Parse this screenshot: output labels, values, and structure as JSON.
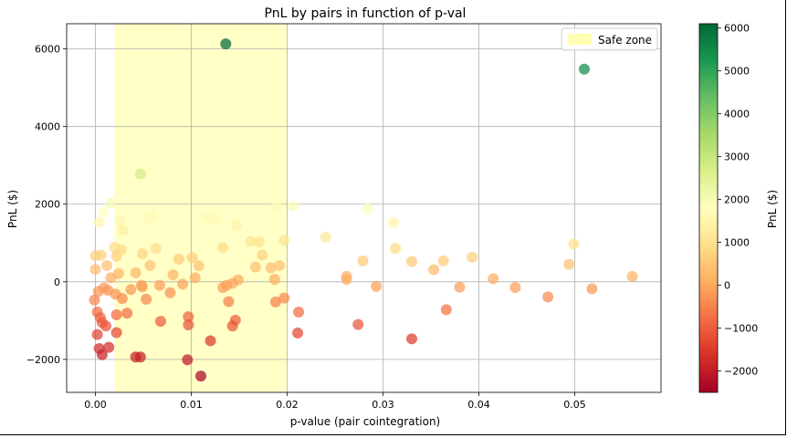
{
  "chart_data": {
    "type": "scatter",
    "title": "PnL by pairs in function of p-val",
    "xlabel": "p-value (pair cointegration)",
    "ylabel": "PnL ($)",
    "xlim": [
      -0.003,
      0.059
    ],
    "ylim": [
      -2850,
      6650
    ],
    "xticks": [
      0.0,
      0.01,
      0.02,
      0.03,
      0.04,
      0.05
    ],
    "xtick_labels": [
      "0.00",
      "0.01",
      "0.02",
      "0.03",
      "0.04",
      "0.05"
    ],
    "yticks": [
      -2000,
      0,
      2000,
      4000,
      6000
    ],
    "ytick_labels": [
      "−2000",
      "0",
      "2000",
      "4000",
      "6000"
    ],
    "grid": true,
    "legend": {
      "position": "upper right",
      "entries": [
        {
          "label": "Safe zone",
          "color": "#ffffb3"
        }
      ]
    },
    "safe_zone": {
      "x": [
        0.002,
        0.02
      ],
      "color": "#ffffb3"
    },
    "colorbar": {
      "label": "PnL ($)",
      "range": [
        -2500,
        6100
      ],
      "ticks": [
        -2000,
        -1000,
        0,
        1000,
        2000,
        3000,
        4000,
        5000,
        6000
      ],
      "tick_labels": [
        "−2000",
        "−1000",
        "0",
        "1000",
        "2000",
        "3000",
        "4000",
        "5000",
        "6000"
      ],
      "colormap": "RdYlGn"
    },
    "points": [
      {
        "x": 0.0136,
        "y": 6130
      },
      {
        "x": 0.051,
        "y": 5480
      },
      {
        "x": 0.0047,
        "y": 2780
      },
      {
        "x": 0.0016,
        "y": 2020
      },
      {
        "x": 0.0008,
        "y": 1800
      },
      {
        "x": 0.0004,
        "y": 1530
      },
      {
        "x": 0.0026,
        "y": 1560
      },
      {
        "x": 0.0029,
        "y": 1330
      },
      {
        "x": 0.0055,
        "y": 1650
      },
      {
        "x": 0.006,
        "y": 1720
      },
      {
        "x": 0.0116,
        "y": 1660
      },
      {
        "x": 0.0126,
        "y": 1620
      },
      {
        "x": 0.0147,
        "y": 1460
      },
      {
        "x": 0.0189,
        "y": 1940
      },
      {
        "x": 0.0206,
        "y": 1950
      },
      {
        "x": 0.0284,
        "y": 1880
      },
      {
        "x": 0.0311,
        "y": 1520
      },
      {
        "x": 0.024,
        "y": 1150
      },
      {
        "x": 0.0,
        "y": 670
      },
      {
        "x": 0.0006,
        "y": 690
      },
      {
        "x": 0.0,
        "y": 320
      },
      {
        "x": 0.0012,
        "y": 420
      },
      {
        "x": 0.002,
        "y": 890
      },
      {
        "x": 0.0022,
        "y": 660
      },
      {
        "x": 0.0027,
        "y": 820
      },
      {
        "x": 0.0024,
        "y": 210
      },
      {
        "x": 0.0016,
        "y": 100
      },
      {
        "x": 0.0042,
        "y": 230
      },
      {
        "x": 0.0049,
        "y": 720
      },
      {
        "x": 0.0057,
        "y": 420
      },
      {
        "x": 0.0063,
        "y": 860
      },
      {
        "x": 0.0081,
        "y": 180
      },
      {
        "x": 0.0087,
        "y": 580
      },
      {
        "x": 0.0101,
        "y": 620
      },
      {
        "x": 0.0104,
        "y": 100
      },
      {
        "x": 0.0108,
        "y": 410
      },
      {
        "x": 0.0133,
        "y": 880
      },
      {
        "x": 0.0149,
        "y": 50
      },
      {
        "x": 0.0162,
        "y": 1040
      },
      {
        "x": 0.0167,
        "y": 380
      },
      {
        "x": 0.0171,
        "y": 1020
      },
      {
        "x": 0.0174,
        "y": 690
      },
      {
        "x": 0.0183,
        "y": 360
      },
      {
        "x": 0.0187,
        "y": 60
      },
      {
        "x": 0.0192,
        "y": 420
      },
      {
        "x": 0.0197,
        "y": 1070
      },
      {
        "x": 0.0262,
        "y": 140
      },
      {
        "x": 0.0262,
        "y": 60
      },
      {
        "x": 0.0279,
        "y": 540
      },
      {
        "x": 0.0293,
        "y": -120
      },
      {
        "x": 0.0313,
        "y": 860
      },
      {
        "x": 0.033,
        "y": 520
      },
      {
        "x": 0.0353,
        "y": 310
      },
      {
        "x": 0.0363,
        "y": 540
      },
      {
        "x": 0.038,
        "y": -140
      },
      {
        "x": 0.0393,
        "y": 630
      },
      {
        "x": 0.0415,
        "y": 80
      },
      {
        "x": 0.0438,
        "y": -150
      },
      {
        "x": 0.0472,
        "y": -390
      },
      {
        "x": 0.0494,
        "y": 450
      },
      {
        "x": 0.0499,
        "y": 970
      },
      {
        "x": 0.0518,
        "y": -180
      },
      {
        "x": 0.056,
        "y": 140
      },
      {
        "x": 0.0003,
        "y": -250
      },
      {
        "x": 0.0009,
        "y": -160
      },
      {
        "x": 0.0013,
        "y": -220
      },
      {
        "x": 0.0021,
        "y": -320
      },
      {
        "x": 0.0028,
        "y": -430
      },
      {
        "x": 0.0033,
        "y": -810
      },
      {
        "x": 0.0037,
        "y": -200
      },
      {
        "x": 0.0048,
        "y": -90
      },
      {
        "x": 0.0049,
        "y": -130
      },
      {
        "x": 0.0053,
        "y": -450
      },
      {
        "x": 0.0067,
        "y": -90
      },
      {
        "x": 0.0078,
        "y": -280
      },
      {
        "x": 0.0091,
        "y": -60
      },
      {
        "x": 0.0133,
        "y": -150
      },
      {
        "x": 0.0137,
        "y": -90
      },
      {
        "x": 0.0139,
        "y": -510
      },
      {
        "x": 0.0143,
        "y": -40
      },
      {
        "x": 0.0188,
        "y": -520
      },
      {
        "x": 0.0197,
        "y": -420
      },
      {
        "x": 0.0212,
        "y": -780
      },
      {
        "x": 0.0211,
        "y": -1320
      },
      {
        "x": 0.0274,
        "y": -1100
      },
      {
        "x": 0.033,
        "y": -1470
      },
      {
        "x": 0.0366,
        "y": -720
      },
      {
        "x": -0.0001,
        "y": -470
      },
      {
        "x": 0.0002,
        "y": -780
      },
      {
        "x": 0.0005,
        "y": -920
      },
      {
        "x": 0.0007,
        "y": -1050
      },
      {
        "x": 0.0011,
        "y": -1140
      },
      {
        "x": 0.0022,
        "y": -850
      },
      {
        "x": 0.0022,
        "y": -1310
      },
      {
        "x": 0.0068,
        "y": -1020
      },
      {
        "x": 0.0097,
        "y": -900
      },
      {
        "x": 0.0097,
        "y": -1110
      },
      {
        "x": 0.0146,
        "y": -990
      },
      {
        "x": 0.0143,
        "y": -1140
      },
      {
        "x": 0.012,
        "y": -1520
      },
      {
        "x": 0.0002,
        "y": -1360
      },
      {
        "x": 0.0004,
        "y": -1720
      },
      {
        "x": 0.0014,
        "y": -1690
      },
      {
        "x": 0.0007,
        "y": -1880
      },
      {
        "x": 0.0042,
        "y": -1940
      },
      {
        "x": 0.0047,
        "y": -1940
      },
      {
        "x": 0.0096,
        "y": -2010
      },
      {
        "x": 0.011,
        "y": -2430
      }
    ]
  }
}
